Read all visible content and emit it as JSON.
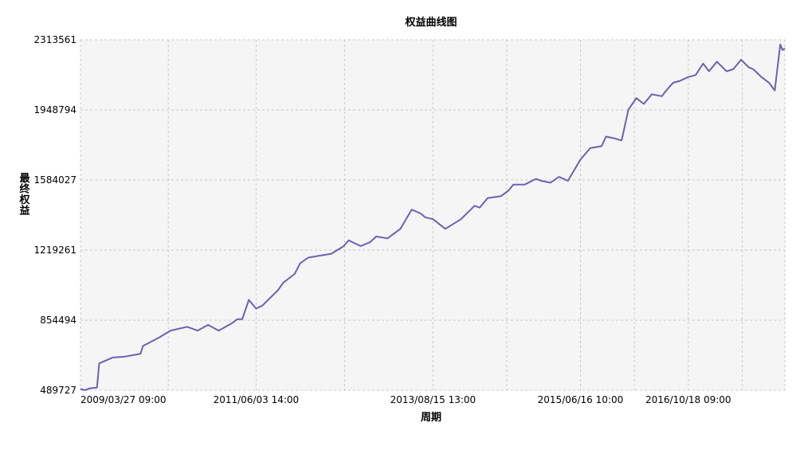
{
  "chart_data": {
    "type": "line",
    "title": "权益曲线图",
    "xlabel": "周期",
    "ylabel": "最终权益",
    "ylim": [
      489727,
      2313561
    ],
    "y_ticks": [
      "489727",
      "854494",
      "1219261",
      "1584027",
      "1948794",
      "2313561"
    ],
    "x_ticks": [
      "2009/03/27 09:00",
      "2011/06/03 14:00",
      "2013/08/15 13:00",
      "2015/06/16 10:00",
      "2016/10/18 09:00"
    ],
    "grid": true,
    "colors": {
      "line": "#6a62b0",
      "plot_bg": "#f5f5f5",
      "grid": "#c8c8c8"
    },
    "series": [
      {
        "x": [
          "2009/03/27",
          "2009/04/15",
          "2009/05/10",
          "2009/06/10",
          "2009/06/20",
          "2009/08/20",
          "2009/10/15",
          "2009/12/25",
          "2010/01/05",
          "2010/03/20",
          "2010/05/10",
          "2010/07/25",
          "2010/09/10",
          "2010/10/28",
          "2010/12/15",
          "2011/02/15",
          "2011/03/10",
          "2011/04/01",
          "2011/05/01",
          "2011/06/03",
          "2011/07/01",
          "2011/09/10",
          "2011/10/05",
          "2011/11/25",
          "2011/12/20",
          "2012/01/25",
          "2012/03/15",
          "2012/05/10",
          "2012/07/05",
          "2012/07/28",
          "2012/09/20",
          "2012/11/01",
          "2012/11/30",
          "2013/01/20",
          "2013/03/20",
          "2013/05/10",
          "2013/06/20",
          "2013/07/10",
          "2013/08/15",
          "2013/10/10",
          "2013/12/20",
          "2014/02/20",
          "2014/03/15",
          "2014/04/20",
          "2014/06/20",
          "2014/07/25",
          "2014/08/15",
          "2014/10/05",
          "2014/11/25",
          "2014/12/20",
          "2015/01/30",
          "2015/03/10",
          "2015/04/20",
          "2015/06/16",
          "2015/07/30",
          "2015/09/20",
          "2015/10/10",
          "2015/11/20",
          "2015/12/20",
          "2016/01/20",
          "2016/02/25",
          "2016/03/30",
          "2016/05/05",
          "2016/06/20",
          "2016/07/10",
          "2016/08/10",
          "2016/09/10",
          "2016/10/18",
          "2016/11/20",
          "2016/12/25",
          "2017/01/20",
          "2017/02/25",
          "2017/04/10",
          "2017/05/10",
          "2017/06/15",
          "2017/07/20",
          "2017/08/10",
          "2017/09/15",
          "2017/10/20",
          "2017/11/15",
          "2017/12/10",
          "2017/12/20",
          "2017/12/31"
        ],
        "y": [
          497000,
          490000,
          500000,
          504000,
          630000,
          660000,
          665000,
          680000,
          720000,
          765000,
          800000,
          820000,
          800000,
          830000,
          800000,
          840000,
          860000,
          860000,
          960000,
          915000,
          930000,
          1010000,
          1050000,
          1095000,
          1150000,
          1180000,
          1190000,
          1200000,
          1240000,
          1270000,
          1240000,
          1260000,
          1290000,
          1280000,
          1330000,
          1430000,
          1410000,
          1390000,
          1380000,
          1330000,
          1380000,
          1450000,
          1440000,
          1490000,
          1500000,
          1530000,
          1560000,
          1560000,
          1590000,
          1580000,
          1570000,
          1600000,
          1580000,
          1690000,
          1750000,
          1760000,
          1810000,
          1800000,
          1790000,
          1950000,
          2010000,
          1980000,
          2030000,
          2020000,
          2050000,
          2090000,
          2100000,
          2120000,
          2130000,
          2190000,
          2150000,
          2200000,
          2150000,
          2160000,
          2210000,
          2170000,
          2160000,
          2120000,
          2090000,
          2050000,
          2290000,
          2260000,
          2270000
        ]
      }
    ]
  }
}
